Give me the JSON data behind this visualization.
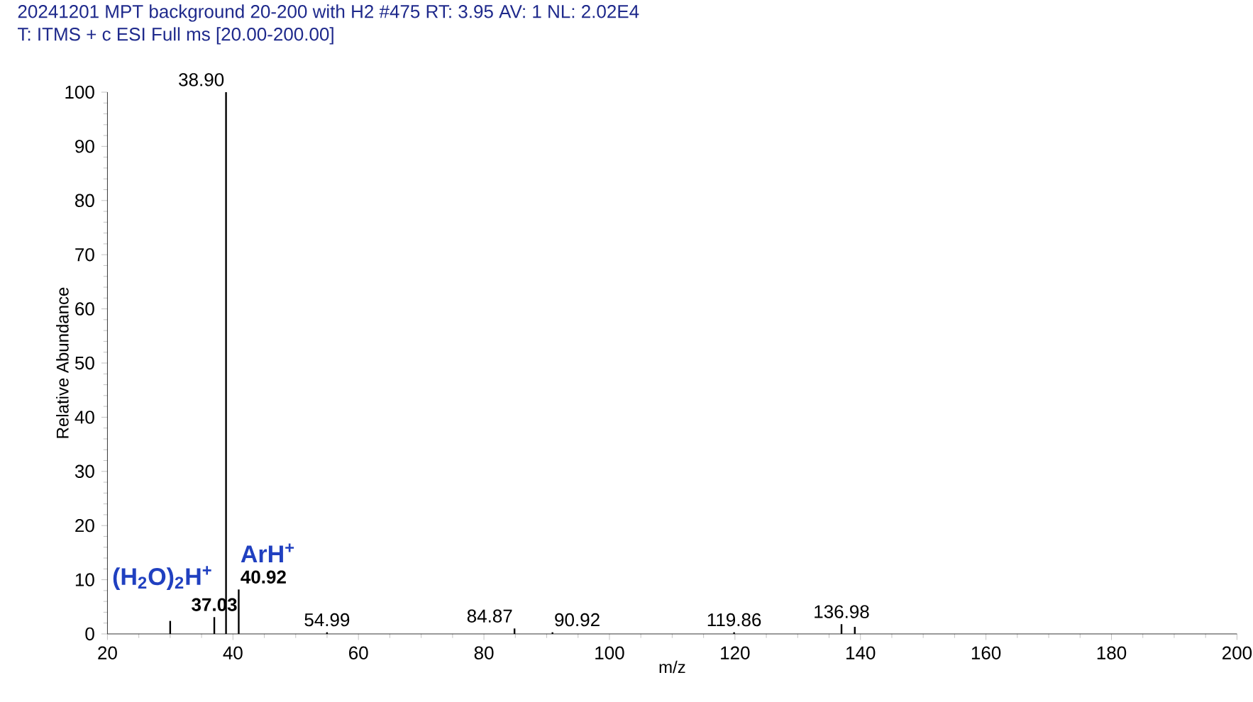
{
  "chart_data": {
    "type": "bar",
    "title": "20241201  MPT background 20-200 with H2      #475   RT: 3.95   AV: 1   NL: 2.02E4",
    "subtitle": "T: ITMS + c ESI Full ms [20.00-200.00]",
    "xlabel": "m/z",
    "ylabel": "Relative Abundance",
    "x": [
      30.0,
      37.03,
      38.9,
      40.92,
      54.99,
      84.87,
      90.92,
      119.86,
      136.98,
      139.1
    ],
    "values": [
      2.4,
      3.1,
      100,
      8.2,
      0.3,
      1.0,
      0.3,
      0.3,
      1.8,
      1.3
    ],
    "color": "#000000",
    "xlim": [
      20,
      200
    ],
    "xticks": [
      20,
      40,
      60,
      80,
      100,
      120,
      140,
      160,
      180,
      200
    ],
    "ylim": [
      0,
      100
    ],
    "yticks": [
      0,
      10,
      20,
      30,
      40,
      50,
      60,
      70,
      80,
      90,
      100
    ],
    "annotations": [
      {
        "text": "37.03",
        "x": 37.03,
        "y": 3.1
      },
      {
        "text": "38.90",
        "x": 38.9,
        "y": 100
      },
      {
        "text": "40.92",
        "x": 40.92,
        "y": 8.2
      },
      {
        "text": "54.99",
        "x": 54.99,
        "y": 0.3
      },
      {
        "text": "84.87",
        "x": 84.87,
        "y": 1.0
      },
      {
        "text": "90.92",
        "x": 90.92,
        "y": 0.3
      },
      {
        "text": "119.86",
        "x": 119.86,
        "y": 0.3
      },
      {
        "text": "136.98",
        "x": 136.98,
        "y": 1.8
      },
      {
        "text": "(H$_{2}$O)$_{2}$H$^{+}$",
        "x": 37.03,
        "y": 3.1
      },
      {
        "text": "ArH$^{+}$",
        "x": 40.92,
        "y": 8.2
      }
    ],
    "grid": false
  }
}
